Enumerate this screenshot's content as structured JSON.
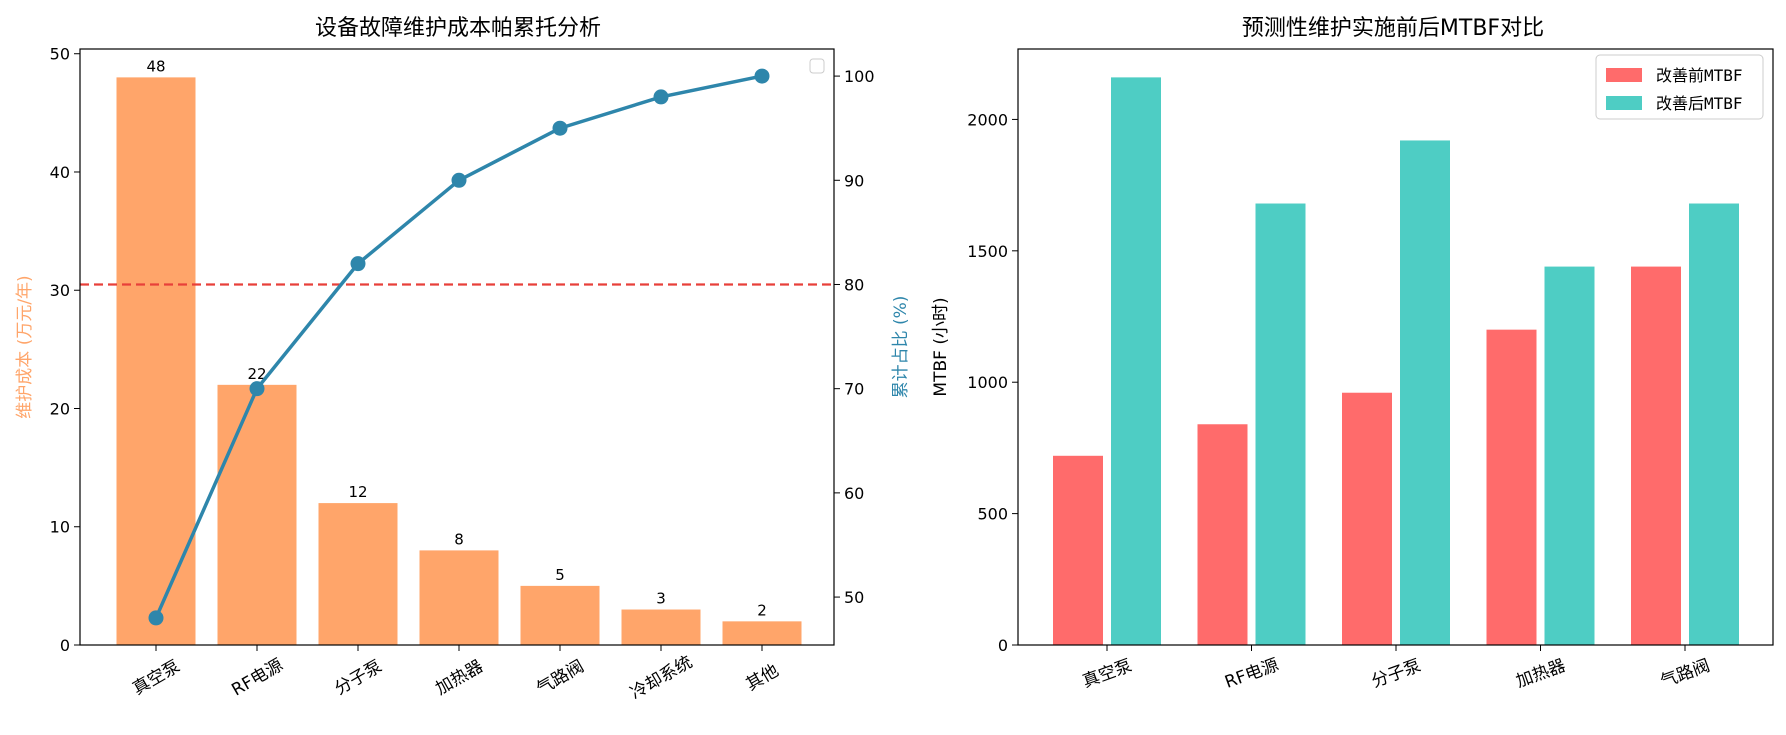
{
  "chart_data": [
    {
      "type": "bar",
      "subtype": "pareto",
      "title": "设备故障维护成本帕累托分析",
      "categories": [
        "真空泵",
        "RF电源",
        "分子泵",
        "加热器",
        "气路阀",
        "冷却系统",
        "其他"
      ],
      "series": [
        {
          "type": "bar",
          "axis": "left",
          "color": "#FFA56A",
          "values": [
            48,
            22,
            12,
            8,
            5,
            3,
            2
          ]
        },
        {
          "type": "line",
          "axis": "right",
          "color": "#2E86AB",
          "values": [
            48,
            70,
            82,
            90,
            95,
            98,
            100
          ]
        }
      ],
      "data_labels": [
        "48",
        "22",
        "12",
        "8",
        "5",
        "3",
        "2"
      ],
      "ylabel": "维护成本 (万元/年)",
      "ylabel_color": "#FFA56A",
      "y2label": "累计占比 (%)",
      "y2label_color": "#2E86AB",
      "ylim": [
        0,
        50.4
      ],
      "yticks": [
        0,
        10,
        20,
        30,
        40,
        50
      ],
      "y2lim": [
        45.4,
        102.6
      ],
      "y2ticks": [
        50,
        60,
        70,
        80,
        90,
        100
      ],
      "reference_line": {
        "axis": "right",
        "value": 80,
        "color": "#E8403A",
        "style": "dashed"
      },
      "legend": "top-right (empty)",
      "grid": false
    },
    {
      "type": "bar",
      "subtype": "grouped",
      "title": "预测性维护实施前后MTBF对比",
      "categories": [
        "真空泵",
        "RF电源",
        "分子泵",
        "加热器",
        "气路阀"
      ],
      "series": [
        {
          "name": "改善前MTBF",
          "color": "#FF6B6B",
          "values": [
            720,
            840,
            960,
            1200,
            1440
          ]
        },
        {
          "name": "改善后MTBF",
          "color": "#4ECDC4",
          "values": [
            2160,
            1680,
            1920,
            1440,
            1680
          ]
        }
      ],
      "xlabel": "",
      "ylabel": "MTBF (小时)",
      "ylim": [
        0,
        2268
      ],
      "yticks": [
        0,
        500,
        1000,
        1500,
        2000
      ],
      "legend": "top-right",
      "grid": false
    }
  ]
}
